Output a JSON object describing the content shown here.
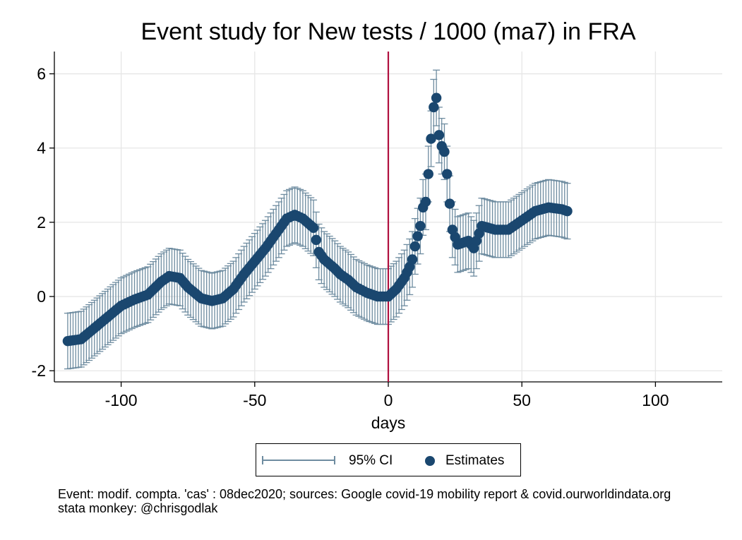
{
  "chart_data": {
    "type": "scatter",
    "title": "Event study for New tests / 1000 (ma7) in FRA",
    "xlabel": "days",
    "ylabel": "",
    "xlim": [
      -125,
      125
    ],
    "ylim": [
      -2.3,
      6.6
    ],
    "xticks": [
      -100,
      -50,
      0,
      50,
      100
    ],
    "yticks": [
      -2,
      0,
      2,
      4,
      6
    ],
    "xtick_labels": [
      "-100",
      "-50",
      "0",
      "50",
      "100"
    ],
    "ytick_labels": [
      "-2",
      "0",
      "2",
      "4",
      "6"
    ],
    "grid": true,
    "event_line_x": 0,
    "event_line_color": "#b0103f",
    "estimate_color": "#1a476f",
    "ci_color": "#6e8ca0",
    "ci_half_width": 0.75,
    "legend_position": "bottom",
    "series": [
      {
        "name": "Estimates",
        "x": [
          -120,
          -115,
          -110,
          -105,
          -100,
          -95,
          -90,
          -85,
          -82,
          -78,
          -75,
          -70,
          -66,
          -62,
          -58,
          -54,
          -50,
          -46,
          -42,
          -38,
          -35,
          -32,
          -28,
          -26,
          -24,
          -20,
          -18,
          -15,
          -12,
          -8,
          -4,
          0,
          3,
          6,
          8,
          9,
          10,
          12,
          13,
          14,
          15,
          16,
          17,
          18,
          19,
          20,
          21,
          22,
          23,
          24,
          26,
          28,
          30,
          32,
          35,
          40,
          45,
          50,
          55,
          60,
          65,
          67
        ],
        "y": [
          -1.2,
          -1.15,
          -0.85,
          -0.55,
          -0.25,
          -0.08,
          0.05,
          0.4,
          0.55,
          0.5,
          0.25,
          -0.05,
          -0.12,
          -0.05,
          0.2,
          0.6,
          0.95,
          1.3,
          1.7,
          2.1,
          2.2,
          2.1,
          1.85,
          1.2,
          1.0,
          0.75,
          0.6,
          0.45,
          0.25,
          0.1,
          0.0,
          0.0,
          0.2,
          0.5,
          0.8,
          1.0,
          1.35,
          1.9,
          2.4,
          2.55,
          3.3,
          4.25,
          5.1,
          5.35,
          4.35,
          4.05,
          3.9,
          3.3,
          2.5,
          1.8,
          1.4,
          1.45,
          1.5,
          1.3,
          1.9,
          1.8,
          1.8,
          2.05,
          2.3,
          2.4,
          2.35,
          2.3
        ]
      }
    ]
  },
  "legend": {
    "ci_label": "95% CI",
    "est_label": "Estimates"
  },
  "note": {
    "line1": "Event: modif. compta. 'cas' : 08dec2020; sources: Google covid-19 mobility report & covid.ourworldindata.org",
    "line2": "stata monkey: @chrisgodlak"
  }
}
